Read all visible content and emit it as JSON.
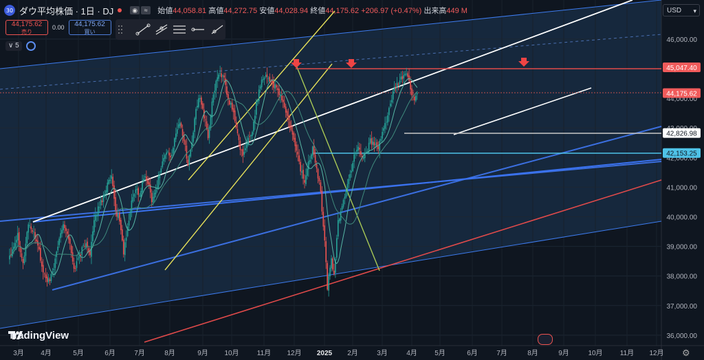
{
  "header": {
    "badge": "30",
    "symbol": "ダウ平均株価 · 1日 · DJ",
    "open_label": "始値",
    "open": "44,058.81",
    "high_label": "高値",
    "high": "44,272.75",
    "low_label": "安値",
    "low": "44,028.94",
    "close_label": "終値",
    "close": "44,175.62",
    "change": "+206.97 (+0.47%)",
    "volume_label": "出来高",
    "volume": "449 M"
  },
  "trade": {
    "sell_price": "44,175.62",
    "sell_label": "売り",
    "spread": "0.00",
    "buy_price": "44,175.62",
    "buy_label": "買い"
  },
  "indicators": {
    "count": "5"
  },
  "currency": "USD",
  "brand": "TradingView",
  "colors": {
    "background": "#0f1620",
    "up": "#26a69a",
    "down": "#ef5350",
    "channel": "#3d7cf0",
    "white": "#ffffff",
    "yellow": "#e6e05a",
    "red": "#e04a4a",
    "cyan": "#4fc3e8",
    "grey": "#c8c8c8"
  },
  "chart_data": {
    "type": "candlestick",
    "y_ticks": [
      36000,
      37000,
      38000,
      39000,
      40000,
      41000,
      42000,
      43000,
      44000,
      45000,
      46000
    ],
    "y_tick_labels": [
      "36,000.00",
      "37,000.00",
      "38,000.00",
      "39,000.00",
      "40,000.00",
      "41,000.00",
      "42,000.00",
      "43,000.00",
      "44,000.00",
      "45,000.00",
      "46,000.00"
    ],
    "ylim": [
      35750,
      47300
    ],
    "x_labels": [
      "3月",
      "4月",
      "5月",
      "6月",
      "7月",
      "8月",
      "9月",
      "10月",
      "11月",
      "12月",
      "2025",
      "2月",
      "3月",
      "4月",
      "5月",
      "6月",
      "7月",
      "8月",
      "9月",
      "10月",
      "11月",
      "12月"
    ],
    "price_labels": [
      {
        "value": 45047.4,
        "text": "45,047.40",
        "style": "red"
      },
      {
        "value": 44175.62,
        "text": "44,175.62",
        "style": "red"
      },
      {
        "value": 42826.98,
        "text": "42,826.98",
        "style": "white"
      },
      {
        "value": 42153.25,
        "text": "42,153.25",
        "style": "cyan"
      }
    ],
    "key_points": [
      [
        0,
        38700
      ],
      [
        6,
        39400
      ],
      [
        10,
        38400
      ],
      [
        14,
        39800
      ],
      [
        18,
        39400
      ],
      [
        21,
        39100
      ],
      [
        24,
        38300
      ],
      [
        27,
        37900
      ],
      [
        30,
        37800
      ],
      [
        34,
        38500
      ],
      [
        38,
        39500
      ],
      [
        40,
        39800
      ],
      [
        44,
        39300
      ],
      [
        48,
        38200
      ],
      [
        52,
        38700
      ],
      [
        56,
        39100
      ],
      [
        60,
        38800
      ],
      [
        63,
        39800
      ],
      [
        66,
        40300
      ],
      [
        70,
        40700
      ],
      [
        73,
        41100
      ],
      [
        76,
        41300
      ],
      [
        79,
        40200
      ],
      [
        82,
        39900
      ],
      [
        85,
        38800
      ],
      [
        88,
        39600
      ],
      [
        91,
        40500
      ],
      [
        94,
        41000
      ],
      [
        97,
        40700
      ],
      [
        100,
        41300
      ],
      [
        103,
        41200
      ],
      [
        106,
        40600
      ],
      [
        109,
        40900
      ],
      [
        112,
        41500
      ],
      [
        115,
        42000
      ],
      [
        118,
        42200
      ],
      [
        121,
        42000
      ],
      [
        124,
        42900
      ],
      [
        127,
        43200
      ],
      [
        130,
        42600
      ],
      [
        133,
        41800
      ],
      [
        136,
        42500
      ],
      [
        139,
        43600
      ],
      [
        142,
        44100
      ],
      [
        145,
        43400
      ],
      [
        148,
        42700
      ],
      [
        151,
        43800
      ],
      [
        154,
        44600
      ],
      [
        157,
        44900
      ],
      [
        160,
        44600
      ],
      [
        163,
        43900
      ],
      [
        166,
        43700
      ],
      [
        169,
        43000
      ],
      [
        172,
        42300
      ],
      [
        175,
        42100
      ],
      [
        178,
        42600
      ],
      [
        181,
        42900
      ],
      [
        184,
        43800
      ],
      [
        187,
        44500
      ],
      [
        190,
        44800
      ],
      [
        193,
        44700
      ],
      [
        196,
        44500
      ],
      [
        199,
        44300
      ],
      [
        202,
        44100
      ],
      [
        205,
        43700
      ],
      [
        208,
        43200
      ],
      [
        211,
        42700
      ],
      [
        214,
        42300
      ],
      [
        217,
        41600
      ],
      [
        220,
        41200
      ],
      [
        223,
        41800
      ],
      [
        226,
        42400
      ],
      [
        229,
        41700
      ],
      [
        232,
        40800
      ],
      [
        235,
        39200
      ],
      [
        237,
        37600
      ],
      [
        240,
        38600
      ],
      [
        242,
        38000
      ],
      [
        245,
        39800
      ],
      [
        248,
        40400
      ],
      [
        251,
        40900
      ],
      [
        254,
        41400
      ],
      [
        257,
        42100
      ],
      [
        260,
        42400
      ],
      [
        263,
        42000
      ],
      [
        266,
        42200
      ],
      [
        269,
        42600
      ],
      [
        272,
        42400
      ],
      [
        275,
        42300
      ],
      [
        278,
        42800
      ],
      [
        281,
        43300
      ],
      [
        284,
        43800
      ],
      [
        287,
        44300
      ],
      [
        290,
        44500
      ],
      [
        293,
        44700
      ],
      [
        296,
        44900
      ],
      [
        299,
        44300
      ],
      [
        302,
        43900
      ],
      [
        304,
        44175
      ]
    ],
    "annotations": [
      "down-arrow",
      "down-arrow",
      "down-arrow"
    ]
  }
}
